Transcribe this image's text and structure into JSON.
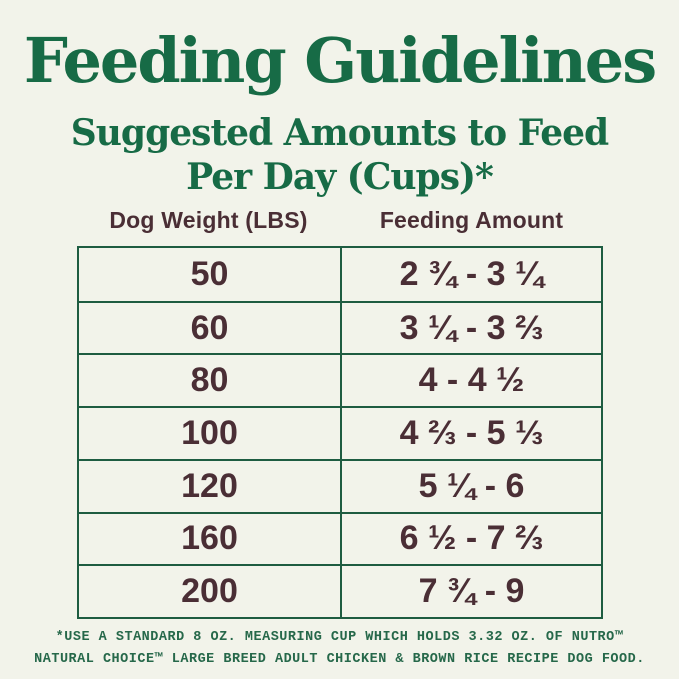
{
  "title": "Feeding Guidelines",
  "subtitle": {
    "line1": "Suggested Amounts to Feed",
    "line2": "Per Day (Cups)*"
  },
  "table": {
    "columns": [
      "Dog Weight (LBS)",
      "Feeding Amount"
    ],
    "rows": [
      {
        "weight": "50",
        "amount": "2 ¾ - 3 ¼"
      },
      {
        "weight": "60",
        "amount": "3 ¼ - 3 ⅔"
      },
      {
        "weight": "80",
        "amount": "4 - 4 ½"
      },
      {
        "weight": "100",
        "amount": "4 ⅔ - 5 ⅓"
      },
      {
        "weight": "120",
        "amount": "5 ¼ - 6"
      },
      {
        "weight": "160",
        "amount": "6 ½ - 7 ⅔"
      },
      {
        "weight": "200",
        "amount": "7 ¾ - 9"
      }
    ]
  },
  "footnote": {
    "line1": "*USE A STANDARD 8 OZ. MEASURING CUP WHICH HOLDS 3.32 OZ. OF NUTRO™",
    "line2": "NATURAL CHOICE™ LARGE BREED ADULT CHICKEN & BROWN RICE RECIPE DOG FOOD."
  },
  "colors": {
    "background": "#f2f3ea",
    "heading_green": "#176b46",
    "footnote_green": "#26684a",
    "text_maroon": "#4a2e35",
    "table_border_green": "#1e5c41"
  }
}
